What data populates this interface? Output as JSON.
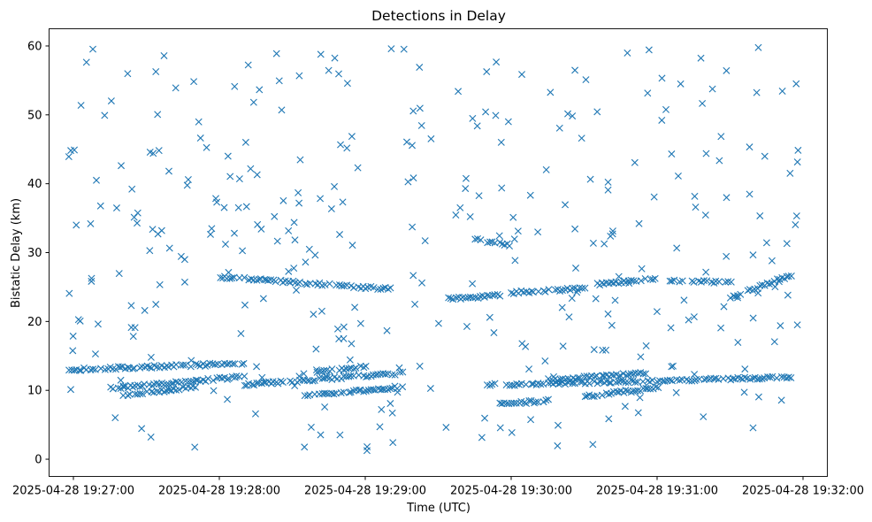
{
  "chart_data": {
    "type": "scatter",
    "title": "Detections in Delay",
    "xlabel": "Time (UTC)",
    "ylabel": "Bistatic Delay (km)",
    "marker": "x",
    "color": "#1f77b4",
    "xlim": [
      "2025-04-28 19:26:50",
      "2025-04-28 19:32:10"
    ],
    "ylim": [
      -2.5,
      62.5
    ],
    "x_ticks": [
      "2025-04-28 19:27:00",
      "2025-04-28 19:28:00",
      "2025-04-28 19:29:00",
      "2025-04-28 19:30:00",
      "2025-04-28 19:31:00",
      "2025-04-28 19:32:00"
    ],
    "y_ticks": [
      0,
      10,
      20,
      30,
      40,
      50,
      60
    ],
    "grid": false,
    "tracks": [
      {
        "start": "2025-04-28 19:26:58",
        "end": "2025-04-28 19:28:10",
        "y_start": 13.0,
        "y_end": 13.9
      },
      {
        "start": "2025-04-28 19:27:15",
        "end": "2025-04-28 19:28:10",
        "y_start": 10.3,
        "y_end": 12.0
      },
      {
        "start": "2025-04-28 19:27:20",
        "end": "2025-04-28 19:27:50",
        "y_start": 9.3,
        "y_end": 10.5
      },
      {
        "start": "2025-04-28 19:28:10",
        "end": "2025-04-28 19:29:15",
        "y_start": 10.8,
        "y_end": 12.5
      },
      {
        "start": "2025-04-28 19:28:35",
        "end": "2025-04-28 19:29:15",
        "y_start": 9.2,
        "y_end": 10.5
      },
      {
        "start": "2025-04-28 19:28:40",
        "end": "2025-04-28 19:29:00",
        "y_start": 12.8,
        "y_end": 13.4
      },
      {
        "start": "2025-04-28 19:28:00",
        "end": "2025-04-28 19:29:10",
        "y_start": 26.5,
        "y_end": 24.7
      },
      {
        "start": "2025-04-28 19:29:35",
        "end": "2025-04-28 19:29:55",
        "y_start": 23.3,
        "y_end": 23.8
      },
      {
        "start": "2025-04-28 19:30:00",
        "end": "2025-04-28 19:30:30",
        "y_start": 24.2,
        "y_end": 24.8
      },
      {
        "start": "2025-04-28 19:30:35",
        "end": "2025-04-28 19:31:00",
        "y_start": 25.4,
        "y_end": 26.2
      },
      {
        "start": "2025-04-28 19:31:05",
        "end": "2025-04-28 19:31:30",
        "y_start": 26.0,
        "y_end": 25.6
      },
      {
        "start": "2025-04-28 19:31:30",
        "end": "2025-04-28 19:31:55",
        "y_start": 23.5,
        "y_end": 26.8
      },
      {
        "start": "2025-04-28 19:29:50",
        "end": "2025-04-28 19:31:55",
        "y_start": 10.8,
        "y_end": 11.9
      },
      {
        "start": "2025-04-28 19:29:55",
        "end": "2025-04-28 19:30:15",
        "y_start": 8.0,
        "y_end": 8.5
      },
      {
        "start": "2025-04-28 19:30:30",
        "end": "2025-04-28 19:31:00",
        "y_start": 9.1,
        "y_end": 10.4
      },
      {
        "start": "2025-04-28 19:30:15",
        "end": "2025-04-28 19:30:55",
        "y_start": 11.5,
        "y_end": 12.5
      },
      {
        "start": "2025-04-28 19:29:45",
        "end": "2025-04-28 19:30:00",
        "y_start": 31.9,
        "y_end": 31.0
      }
    ],
    "noise": {
      "start": "2025-04-28 19:26:58",
      "end": "2025-04-28 19:31:58",
      "y_min": 1,
      "y_max": 60,
      "count": 340
    }
  }
}
